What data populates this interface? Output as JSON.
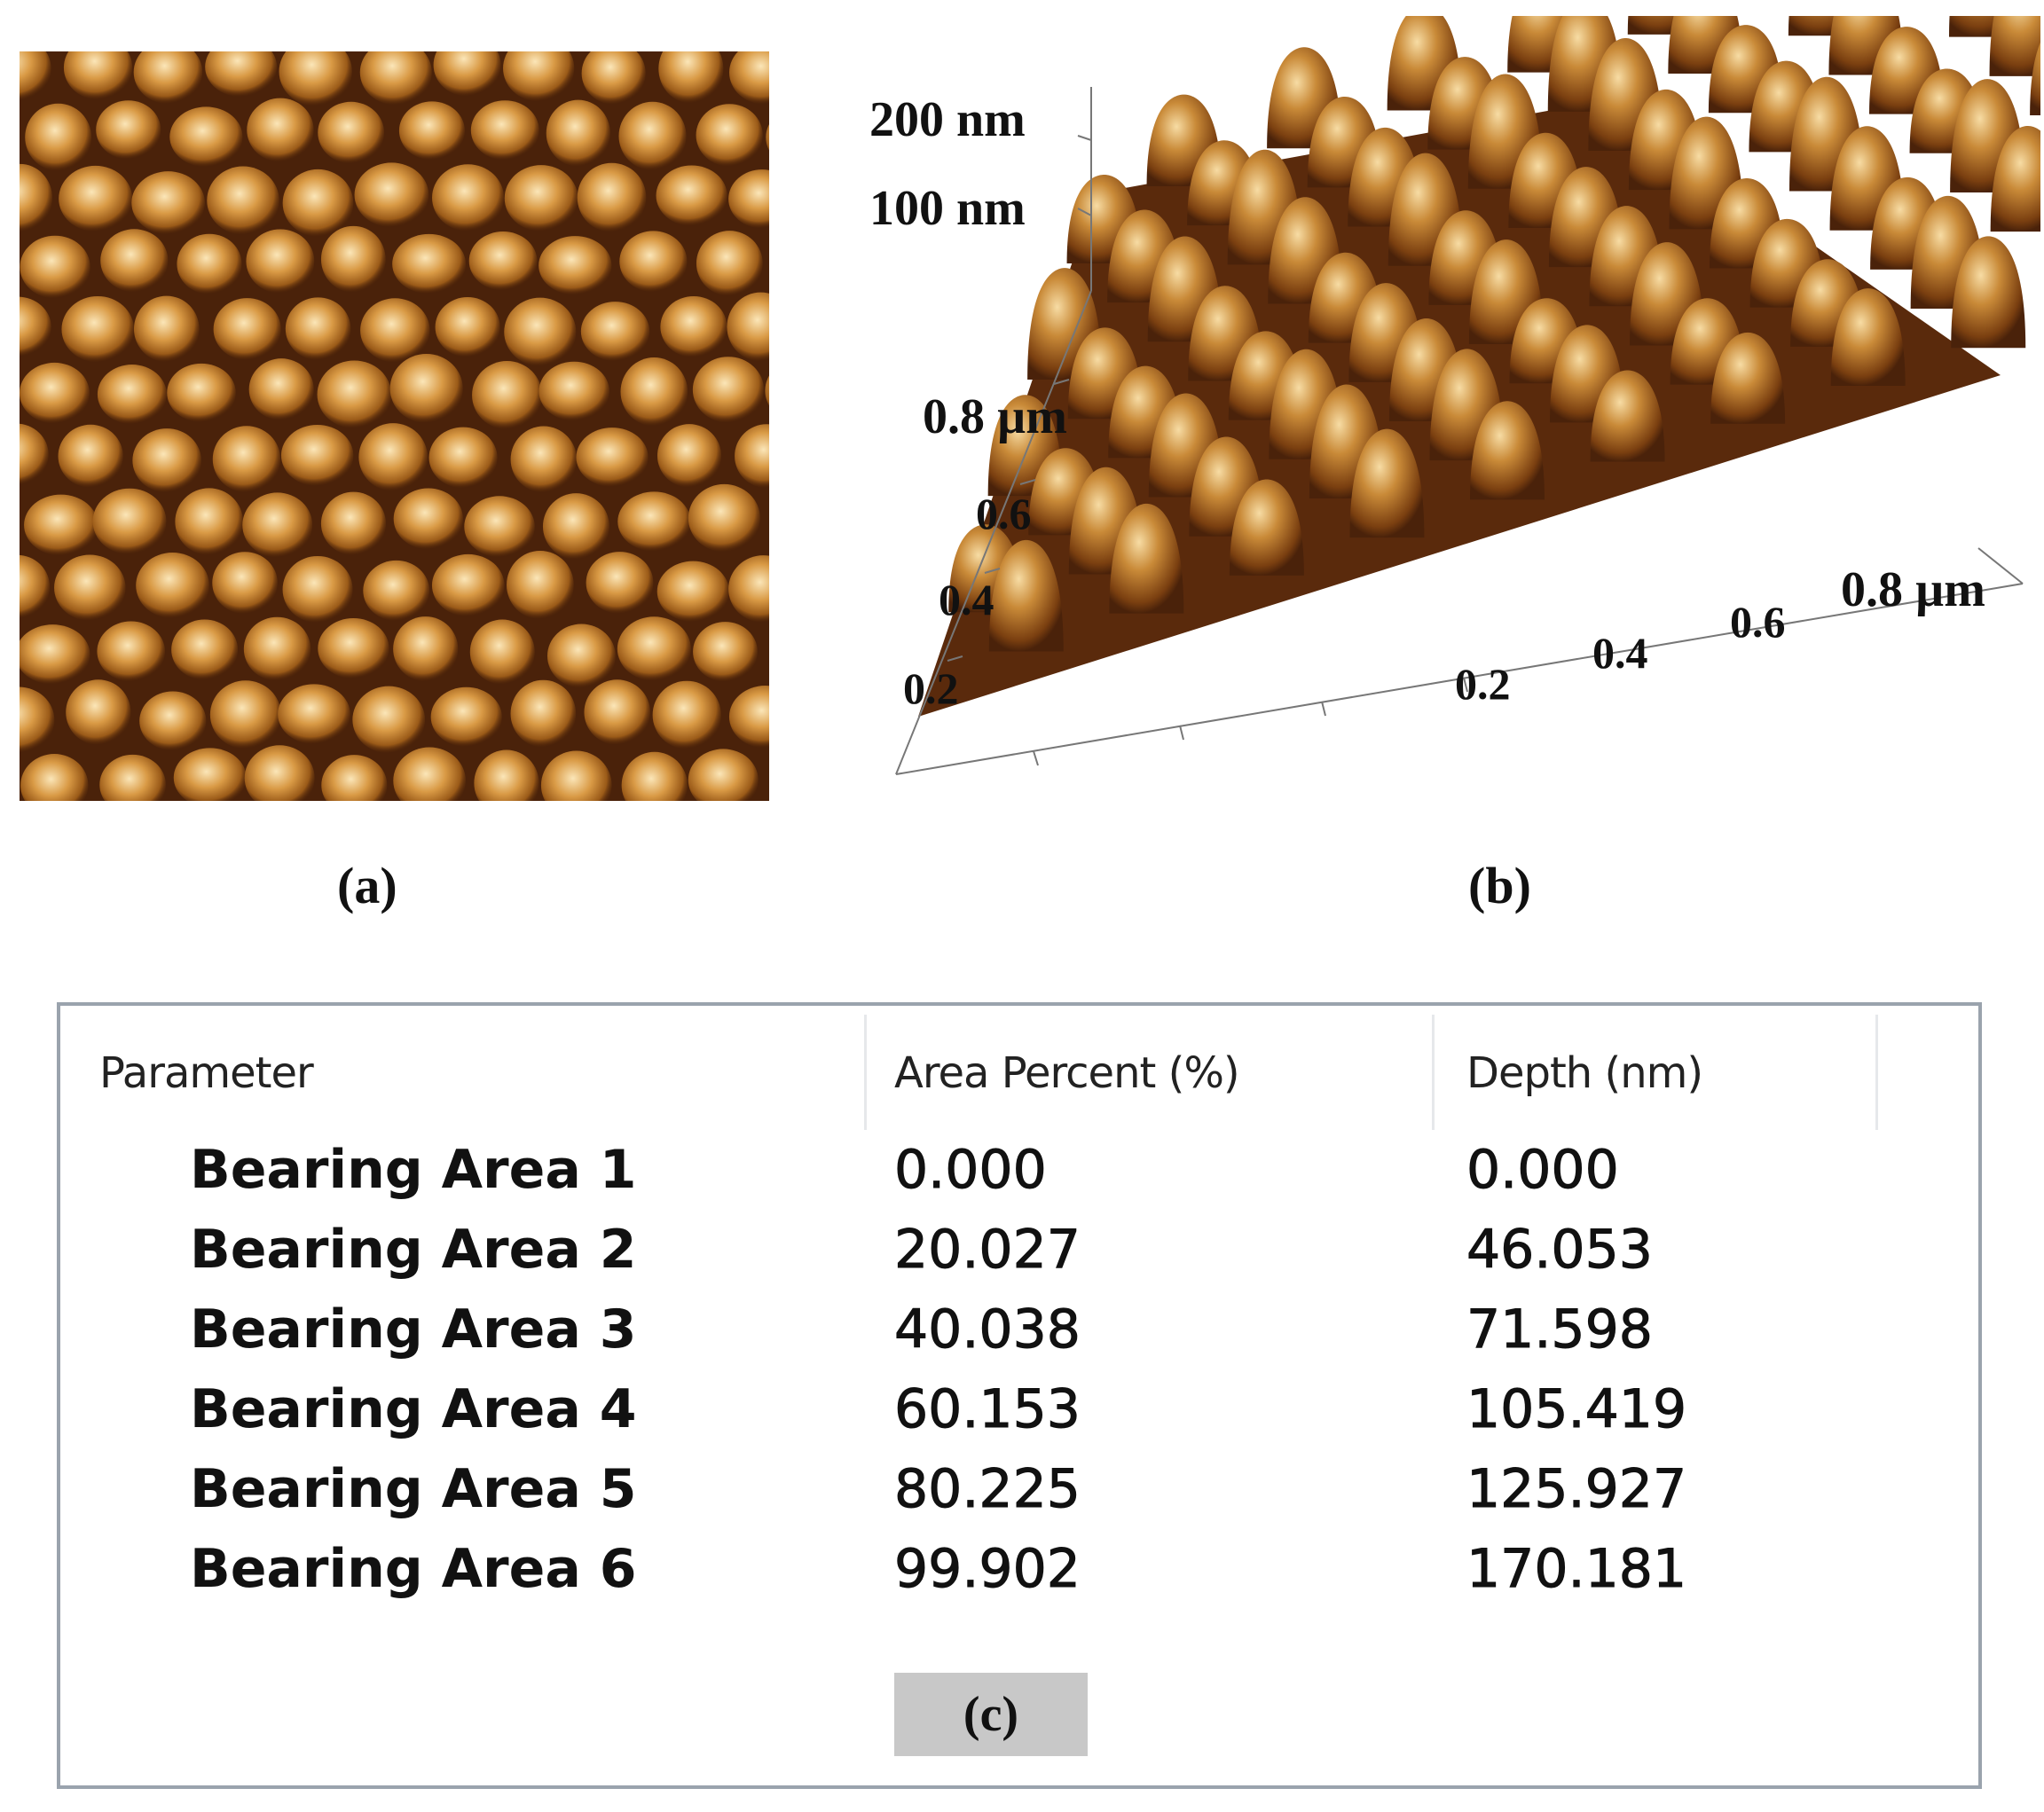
{
  "panels": {
    "a": {
      "caption": "(a)"
    },
    "b": {
      "caption": "(b)",
      "z_labels": [
        "200 nm",
        "100 nm"
      ],
      "y_labels": [
        "0.8 µm",
        "0.6",
        "0.4",
        "0.2"
      ],
      "x_labels": [
        "0.2",
        "0.4",
        "0.6",
        "0.8 µm"
      ]
    }
  },
  "table": {
    "headers": [
      "Parameter",
      "Area Percent (%)",
      "Depth (nm)"
    ],
    "rows": [
      {
        "label": "Bearing Area 1",
        "area_percent": "0.000",
        "depth_nm": "0.000"
      },
      {
        "label": "Bearing Area 2",
        "area_percent": "20.027",
        "depth_nm": "46.053"
      },
      {
        "label": "Bearing Area 3",
        "area_percent": "40.038",
        "depth_nm": "71.598"
      },
      {
        "label": "Bearing Area 4",
        "area_percent": "60.153",
        "depth_nm": "105.419"
      },
      {
        "label": "Bearing Area 5",
        "area_percent": "80.225",
        "depth_nm": "125.927"
      },
      {
        "label": "Bearing Area 6",
        "area_percent": "99.902",
        "depth_nm": "170.181"
      }
    ],
    "caption": "(c)"
  },
  "colors": {
    "dark": "#3a1806",
    "mid": "#a8641c",
    "light": "#fbe3b4",
    "border": "#9aa3ad",
    "caption_bg": "#c8c8c8"
  }
}
